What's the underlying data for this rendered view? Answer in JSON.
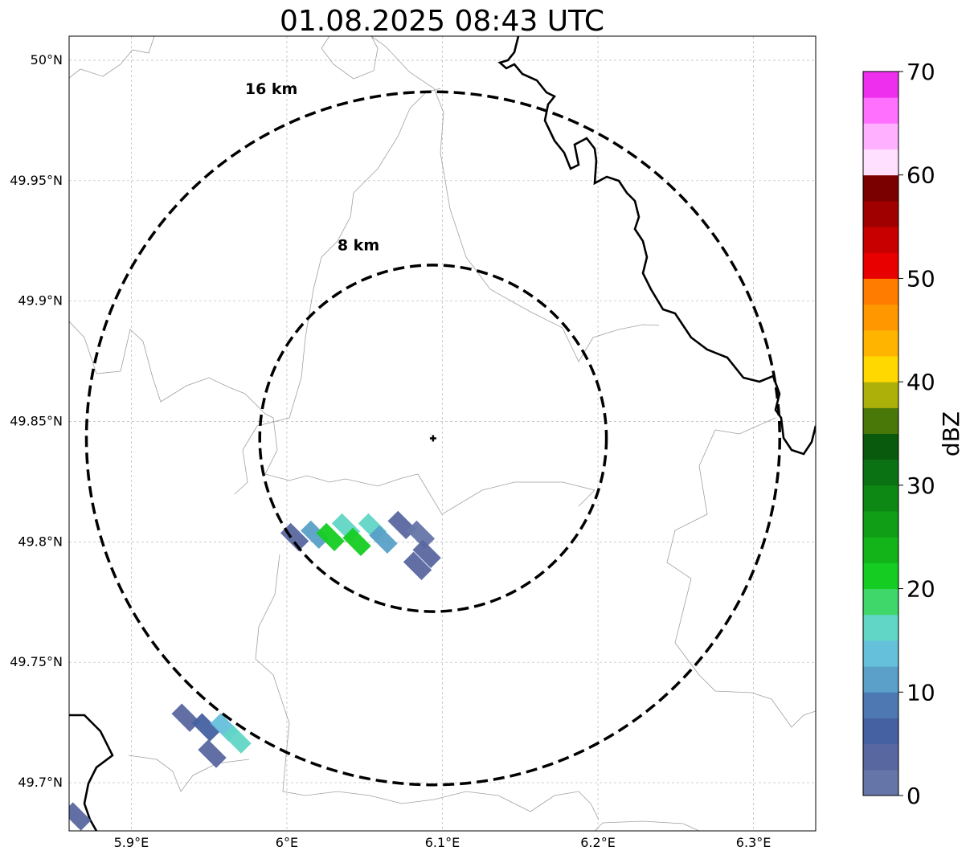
{
  "title": "01.08.2025 08:43 UTC",
  "map": {
    "lon_range": [
      5.86,
      6.34
    ],
    "lat_range": [
      49.68,
      50.01
    ],
    "x_ticks": [
      {
        "value": 5.9,
        "label": "5.9°E"
      },
      {
        "value": 6.0,
        "label": "6°E"
      },
      {
        "value": 6.1,
        "label": "6.1°E"
      },
      {
        "value": 6.2,
        "label": "6.2°E"
      },
      {
        "value": 6.3,
        "label": "6.3°E"
      }
    ],
    "y_ticks": [
      {
        "value": 49.7,
        "label": "49.7°N"
      },
      {
        "value": 49.75,
        "label": "49.75°N"
      },
      {
        "value": 49.8,
        "label": "49.8°N"
      },
      {
        "value": 49.85,
        "label": "49.85°N"
      },
      {
        "value": 49.9,
        "label": "49.9°N"
      },
      {
        "value": 49.95,
        "label": "49.95°N"
      },
      {
        "value": 50.0,
        "label": "50°N"
      }
    ],
    "grid": true,
    "radar_center": {
      "lon": 6.094,
      "lat": 49.843
    },
    "rings": [
      {
        "label": "8 km",
        "radius_km": 8,
        "label_lon": 6.046,
        "label_lat": 49.921
      },
      {
        "label": "16 km",
        "radius_km": 16,
        "label_lon": 5.99,
        "label_lat": 49.986
      }
    ],
    "colors": {
      "ring": "#000000",
      "border": "#000000",
      "admin": "#a0a0a0",
      "grid": "#b8b8b8"
    }
  },
  "echoes": [
    {
      "lon": 6.005,
      "lat": 49.802,
      "dbz": 4
    },
    {
      "lon": 6.018,
      "lat": 49.803,
      "dbz": 12
    },
    {
      "lon": 6.028,
      "lat": 49.802,
      "dbz": 20
    },
    {
      "lon": 6.038,
      "lat": 49.806,
      "dbz": 15
    },
    {
      "lon": 6.045,
      "lat": 49.8,
      "dbz": 21
    },
    {
      "lon": 6.055,
      "lat": 49.806,
      "dbz": 17
    },
    {
      "lon": 6.062,
      "lat": 49.801,
      "dbz": 12
    },
    {
      "lon": 6.074,
      "lat": 49.807,
      "dbz": 4
    },
    {
      "lon": 6.086,
      "lat": 49.803,
      "dbz": 2
    },
    {
      "lon": 6.09,
      "lat": 49.795,
      "dbz": 3
    },
    {
      "lon": 6.084,
      "lat": 49.79,
      "dbz": 3
    },
    {
      "lon": 5.935,
      "lat": 49.727,
      "dbz": 3
    },
    {
      "lon": 5.948,
      "lat": 49.723,
      "dbz": 5
    },
    {
      "lon": 5.96,
      "lat": 49.723,
      "dbz": 13
    },
    {
      "lon": 5.968,
      "lat": 49.718,
      "dbz": 17
    },
    {
      "lon": 5.952,
      "lat": 49.712,
      "dbz": 4
    },
    {
      "lon": 5.865,
      "lat": 49.686,
      "dbz": 4
    }
  ],
  "colorbar": {
    "label": "dBZ",
    "min": 0,
    "max": 70,
    "step": 2.5,
    "ticks": [
      "0",
      "10",
      "20",
      "30",
      "40",
      "50",
      "60",
      "70"
    ],
    "colors": [
      "#6575a8",
      "#5867a0",
      "#4661a2",
      "#4e78b2",
      "#5aa0c8",
      "#65c0dc",
      "#62d6c6",
      "#3fd66a",
      "#15cc22",
      "#12b41a",
      "#0f9e16",
      "#0e8815",
      "#0b7213",
      "#0a5a0d",
      "#4a7808",
      "#aeb00a",
      "#ffd800",
      "#ffb400",
      "#ff9800",
      "#ff7c00",
      "#e80000",
      "#c80000",
      "#a00000",
      "#7a0000",
      "#ffe0ff",
      "#ffb0ff",
      "#ff70ff",
      "#ee30ee"
    ]
  }
}
